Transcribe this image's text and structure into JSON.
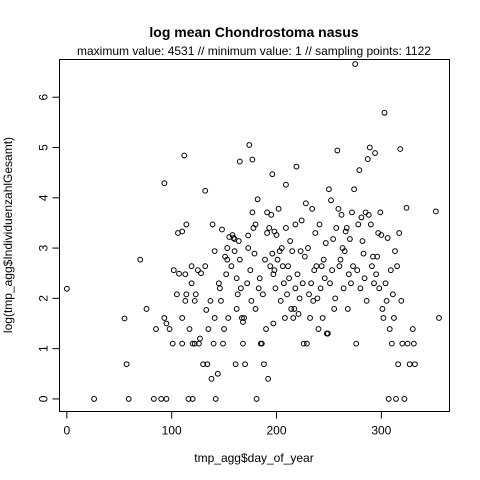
{
  "chart_data": {
    "type": "scatter",
    "title": "log mean Chondrostoma nasus",
    "subtitle": "maximum value: 4531  //  minimum value: 1  // sampling points: 1122",
    "xlabel": "tmp_agg$day_of_year",
    "ylabel": "log(tmp_agg$IndividuenzahlGesamt)",
    "xlim": [
      -7,
      365
    ],
    "ylim": [
      -0.25,
      6.75
    ],
    "xticks": [
      0,
      100,
      200,
      300
    ],
    "yticks": [
      0,
      1,
      2,
      3,
      4,
      5,
      6
    ],
    "grid": false,
    "marker": "open-circle",
    "points": [
      [
        0,
        2.19
      ],
      [
        26,
        0.0
      ],
      [
        55,
        1.6
      ],
      [
        57,
        0.69
      ],
      [
        59,
        0.0
      ],
      [
        70,
        2.77
      ],
      [
        76,
        1.79
      ],
      [
        83,
        0.0
      ],
      [
        85,
        1.39
      ],
      [
        90,
        0.0
      ],
      [
        93,
        4.29
      ],
      [
        93,
        1.61
      ],
      [
        95,
        1.5
      ],
      [
        95,
        0.0
      ],
      [
        98,
        1.39
      ],
      [
        101,
        1.1
      ],
      [
        102,
        2.56
      ],
      [
        105,
        2.08
      ],
      [
        106,
        3.3
      ],
      [
        107,
        2.49
      ],
      [
        110,
        3.33
      ],
      [
        110,
        1.61
      ],
      [
        110,
        1.1
      ],
      [
        112,
        4.84
      ],
      [
        113,
        1.95
      ],
      [
        113,
        2.48
      ],
      [
        114,
        3.47
      ],
      [
        114,
        2.08
      ],
      [
        116,
        0.0
      ],
      [
        117,
        1.39
      ],
      [
        119,
        2.64
      ],
      [
        119,
        2.3
      ],
      [
        120,
        1.1
      ],
      [
        120,
        0.0
      ],
      [
        122,
        1.95
      ],
      [
        122,
        1.1
      ],
      [
        123,
        2.08
      ],
      [
        125,
        2.56
      ],
      [
        126,
        1.1
      ],
      [
        127,
        1.2
      ],
      [
        128,
        2.5
      ],
      [
        130,
        0.69
      ],
      [
        132,
        4.14
      ],
      [
        132,
        2.64
      ],
      [
        133,
        1.77
      ],
      [
        134,
        0.69
      ],
      [
        135,
        1.39
      ],
      [
        137,
        1.95
      ],
      [
        138,
        0.4
      ],
      [
        139,
        3.47
      ],
      [
        140,
        1.1
      ],
      [
        141,
        2.94
      ],
      [
        141,
        1.61
      ],
      [
        142,
        0.0
      ],
      [
        144,
        0.5
      ],
      [
        145,
        2.3
      ],
      [
        146,
        2.2
      ],
      [
        147,
        1.95
      ],
      [
        148,
        3.37
      ],
      [
        149,
        1.1
      ],
      [
        150,
        1.39
      ],
      [
        151,
        2.83
      ],
      [
        152,
        2.48
      ],
      [
        153,
        3.0
      ],
      [
        153,
        2.77
      ],
      [
        154,
        1.61
      ],
      [
        155,
        3.22
      ],
      [
        157,
        2.64
      ],
      [
        158,
        3.26
      ],
      [
        159,
        3.2
      ],
      [
        160,
        3.18
      ],
      [
        160,
        2.94
      ],
      [
        161,
        0.69
      ],
      [
        162,
        2.4
      ],
      [
        162,
        1.79
      ],
      [
        163,
        2.08
      ],
      [
        164,
        3.14
      ],
      [
        165,
        4.72
      ],
      [
        165,
        2.77
      ],
      [
        166,
        2.2
      ],
      [
        167,
        1.61
      ],
      [
        168,
        1.53
      ],
      [
        168,
        1.1
      ],
      [
        169,
        1.61
      ],
      [
        170,
        0.69
      ],
      [
        172,
        2.3
      ],
      [
        173,
        3.0
      ],
      [
        173,
        3.25
      ],
      [
        174,
        5.05
      ],
      [
        175,
        2.56
      ],
      [
        176,
        1.95
      ],
      [
        177,
        4.76
      ],
      [
        177,
        3.71
      ],
      [
        178,
        3.4
      ],
      [
        179,
        2.89
      ],
      [
        180,
        1.79
      ],
      [
        180,
        3.47
      ],
      [
        181,
        0.0
      ],
      [
        182,
        3.97
      ],
      [
        183,
        2.2
      ],
      [
        184,
        2.4
      ],
      [
        185,
        1.1
      ],
      [
        186,
        1.1
      ],
      [
        187,
        2.08
      ],
      [
        188,
        0.69
      ],
      [
        189,
        2.77
      ],
      [
        190,
        1.39
      ],
      [
        191,
        3.71
      ],
      [
        191,
        3.3
      ],
      [
        192,
        0.4
      ],
      [
        193,
        3.4
      ],
      [
        194,
        2.64
      ],
      [
        195,
        3.66
      ],
      [
        196,
        2.89
      ],
      [
        196,
        4.47
      ],
      [
        197,
        2.48
      ],
      [
        197,
        1.5
      ],
      [
        198,
        3.33
      ],
      [
        198,
        2.56
      ],
      [
        199,
        2.2
      ],
      [
        200,
        3.26
      ],
      [
        201,
        2.77
      ],
      [
        202,
        3.78
      ],
      [
        203,
        2.94
      ],
      [
        204,
        1.95
      ],
      [
        205,
        3.0
      ],
      [
        206,
        2.64
      ],
      [
        207,
        2.3
      ],
      [
        208,
        1.61
      ],
      [
        209,
        3.4
      ],
      [
        209,
        4.26
      ],
      [
        210,
        2.08
      ],
      [
        211,
        2.64
      ],
      [
        212,
        2.4
      ],
      [
        213,
        3.14
      ],
      [
        214,
        1.79
      ],
      [
        215,
        2.94
      ],
      [
        216,
        1.61
      ],
      [
        217,
        1.79
      ],
      [
        218,
        3.47
      ],
      [
        218,
        2.2
      ],
      [
        219,
        4.62
      ],
      [
        220,
        2.48
      ],
      [
        221,
        1.69
      ],
      [
        222,
        2.0
      ],
      [
        223,
        2.94
      ],
      [
        224,
        3.55
      ],
      [
        225,
        2.3
      ],
      [
        226,
        1.1
      ],
      [
        227,
        2.83
      ],
      [
        228,
        3.89
      ],
      [
        229,
        1.1
      ],
      [
        230,
        3.0
      ],
      [
        231,
        2.08
      ],
      [
        232,
        1.61
      ],
      [
        233,
        2.3
      ],
      [
        234,
        3.78
      ],
      [
        235,
        1.95
      ],
      [
        236,
        2.56
      ],
      [
        237,
        3.3
      ],
      [
        238,
        2.64
      ],
      [
        239,
        2.0
      ],
      [
        240,
        1.39
      ],
      [
        241,
        3.47
      ],
      [
        242,
        2.2
      ],
      [
        243,
        2.64
      ],
      [
        244,
        1.61
      ],
      [
        245,
        2.77
      ],
      [
        246,
        2.4
      ],
      [
        247,
        3.1
      ],
      [
        248,
        1.3
      ],
      [
        249,
        1.3
      ],
      [
        250,
        4.17
      ],
      [
        251,
        2.3
      ],
      [
        252,
        3.95
      ],
      [
        253,
        2.56
      ],
      [
        254,
        3.18
      ],
      [
        255,
        1.79
      ],
      [
        256,
        2.0
      ],
      [
        257,
        3.4
      ],
      [
        258,
        4.94
      ],
      [
        259,
        3.78
      ],
      [
        260,
        2.64
      ],
      [
        261,
        2.77
      ],
      [
        262,
        3.66
      ],
      [
        263,
        3.0
      ],
      [
        264,
        2.2
      ],
      [
        265,
        2.94
      ],
      [
        266,
        3.33
      ],
      [
        267,
        3.4
      ],
      [
        268,
        1.79
      ],
      [
        269,
        2.48
      ],
      [
        270,
        3.18
      ],
      [
        271,
        2.3
      ],
      [
        272,
        3.71
      ],
      [
        273,
        2.64
      ],
      [
        274,
        4.17
      ],
      [
        275,
        6.66
      ],
      [
        276,
        1.1
      ],
      [
        277,
        2.56
      ],
      [
        278,
        3.47
      ],
      [
        279,
        4.55
      ],
      [
        280,
        2.2
      ],
      [
        281,
        3.61
      ],
      [
        282,
        3.14
      ],
      [
        283,
        2.89
      ],
      [
        284,
        2.4
      ],
      [
        285,
        3.71
      ],
      [
        286,
        1.95
      ],
      [
        287,
        4.77
      ],
      [
        288,
        3.66
      ],
      [
        289,
        5.0
      ],
      [
        290,
        3.47
      ],
      [
        291,
        2.64
      ],
      [
        292,
        2.83
      ],
      [
        293,
        2.3
      ],
      [
        294,
        4.89
      ],
      [
        295,
        2.48
      ],
      [
        296,
        2.83
      ],
      [
        297,
        3.3
      ],
      [
        298,
        2.2
      ],
      [
        299,
        3.71
      ],
      [
        300,
        3.26
      ],
      [
        301,
        1.79
      ],
      [
        302,
        1.61
      ],
      [
        303,
        5.69
      ],
      [
        304,
        2.3
      ],
      [
        305,
        1.95
      ],
      [
        306,
        3.2
      ],
      [
        307,
        0.0
      ],
      [
        308,
        1.39
      ],
      [
        309,
        2.56
      ],
      [
        310,
        1.1
      ],
      [
        311,
        2.08
      ],
      [
        312,
        1.61
      ],
      [
        313,
        2.94
      ],
      [
        314,
        0.0
      ],
      [
        315,
        2.64
      ],
      [
        316,
        0.69
      ],
      [
        317,
        3.3
      ],
      [
        318,
        4.97
      ],
      [
        319,
        1.95
      ],
      [
        320,
        1.1
      ],
      [
        322,
        0.0
      ],
      [
        324,
        3.8
      ],
      [
        325,
        1.1
      ],
      [
        327,
        0.69
      ],
      [
        330,
        1.39
      ],
      [
        331,
        1.1
      ],
      [
        332,
        0.69
      ],
      [
        352,
        3.73
      ],
      [
        355,
        1.61
      ]
    ]
  }
}
